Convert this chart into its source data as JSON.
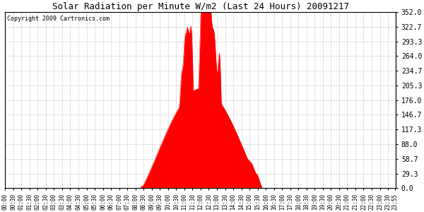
{
  "title": "Solar Radiation per Minute W/m2 (Last 24 Hours) 20091217",
  "copyright": "Copyright 2009 Cartronics.com",
  "background_color": "#ffffff",
  "fill_color": "#ff0000",
  "line_color": "#ff0000",
  "grid_color": "#aaaaaa",
  "y_ticks": [
    0.0,
    29.3,
    58.7,
    88.0,
    117.3,
    146.7,
    176.0,
    205.3,
    234.7,
    264.0,
    293.3,
    322.7,
    352.0
  ],
  "ylim": [
    0,
    352.0
  ],
  "total_minutes": 1440,
  "sunrise_min": 500,
  "sunset_min": 945,
  "peak_min": 745,
  "peak_value": 352.0
}
